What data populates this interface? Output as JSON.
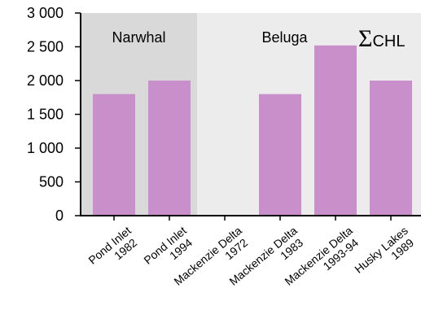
{
  "chart_data": {
    "type": "bar",
    "categories": [
      [
        "Pond Inlet",
        "1982"
      ],
      [
        "Pond Inlet",
        "1994"
      ],
      [
        "Mackenzie Delta",
        "1972"
      ],
      [
        "Mackenzie Delta",
        "1983"
      ],
      [
        "Mackenzie Delta",
        "1993-94"
      ],
      [
        "Husky Lakes",
        "1989"
      ]
    ],
    "values": [
      1800,
      2000,
      null,
      1800,
      2520,
      2000
    ],
    "ylim": [
      0,
      3000
    ],
    "yticks": [
      0,
      500,
      1000,
      1500,
      2000,
      2500,
      3000
    ],
    "ytick_labels": [
      "0",
      "500",
      "1 000",
      "1 500",
      "2 000",
      "2 500",
      "3 000"
    ],
    "groups": [
      {
        "label": "Narwhal",
        "from": 0,
        "to": 1,
        "color": "#d9d9d9"
      },
      {
        "label": "Beluga",
        "from": 2,
        "to": 5,
        "color": "#ececec"
      }
    ],
    "series_label": {
      "symbol": "Σ",
      "text": "CHL"
    },
    "bar_color": "#c98fcb",
    "grid": false
  }
}
